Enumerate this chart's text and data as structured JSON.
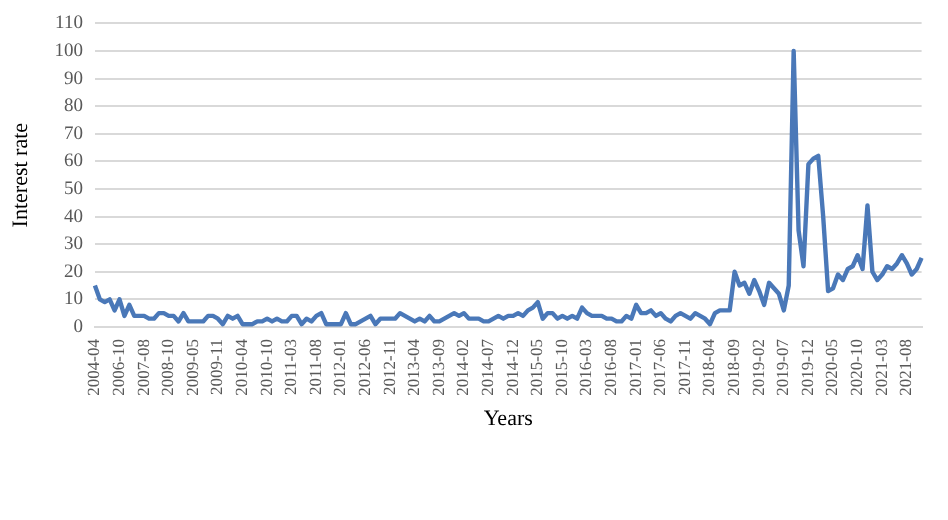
{
  "chart_data": {
    "type": "line",
    "xlabel": "Years",
    "ylabel": "Interest rate",
    "categories": [
      "2004-04",
      null,
      null,
      null,
      null,
      "2006-10",
      null,
      null,
      null,
      null,
      "2007-08",
      null,
      null,
      null,
      null,
      "2008-10",
      null,
      null,
      null,
      null,
      "2009-05",
      null,
      null,
      null,
      null,
      "2009-11",
      null,
      null,
      null,
      null,
      "2010-04",
      null,
      null,
      null,
      null,
      "2010-10",
      null,
      null,
      null,
      null,
      "2011-03",
      null,
      null,
      null,
      null,
      "2011-08",
      null,
      null,
      null,
      null,
      "2012-01",
      null,
      null,
      null,
      null,
      "2012-06",
      null,
      null,
      null,
      null,
      "2012-11",
      null,
      null,
      null,
      null,
      "2013-04",
      null,
      null,
      null,
      null,
      "2013-09",
      null,
      null,
      null,
      null,
      "2014-02",
      null,
      null,
      null,
      null,
      "2014-07",
      null,
      null,
      null,
      null,
      "2014-12",
      null,
      null,
      null,
      null,
      "2015-05",
      null,
      null,
      null,
      null,
      "2015-10",
      null,
      null,
      null,
      null,
      "2016-03",
      null,
      null,
      null,
      null,
      "2016-08",
      null,
      null,
      null,
      null,
      "2017-01",
      null,
      null,
      null,
      null,
      "2017-06",
      null,
      null,
      null,
      null,
      "2017-11",
      null,
      null,
      null,
      null,
      "2018-04",
      null,
      null,
      null,
      null,
      "2018-09",
      null,
      null,
      null,
      null,
      "2019-02",
      null,
      null,
      null,
      null,
      "2019-07",
      null,
      null,
      null,
      null,
      "2019-12",
      null,
      null,
      null,
      null,
      "2020-05",
      null,
      null,
      null,
      null,
      "2020-10",
      null,
      null,
      null,
      null,
      "2021-03",
      null,
      null,
      null,
      null,
      "2021-08",
      null,
      null,
      null
    ],
    "series": [
      {
        "color": "#4a78b8",
        "values": [
          15,
          10,
          9,
          10,
          6,
          10,
          4,
          8,
          4,
          4,
          4,
          3,
          3,
          5,
          5,
          4,
          4,
          2,
          5,
          2,
          2,
          2,
          2,
          4,
          4,
          3,
          1,
          4,
          3,
          4,
          1,
          1,
          1,
          2,
          2,
          3,
          2,
          3,
          2,
          2,
          4,
          4,
          1,
          3,
          2,
          4,
          5,
          1,
          1,
          1,
          1,
          5,
          1,
          1,
          2,
          3,
          4,
          1,
          3,
          3,
          3,
          3,
          5,
          4,
          3,
          2,
          3,
          2,
          4,
          2,
          2,
          3,
          4,
          5,
          4,
          5,
          3,
          3,
          3,
          2,
          2,
          3,
          4,
          3,
          4,
          4,
          5,
          4,
          6,
          7,
          9,
          3,
          5,
          5,
          3,
          4,
          3,
          4,
          3,
          7,
          5,
          4,
          4,
          4,
          3,
          3,
          2,
          2,
          4,
          3,
          8,
          5,
          5,
          6,
          4,
          5,
          3,
          2,
          4,
          5,
          4,
          3,
          5,
          4,
          3,
          1,
          5,
          6,
          6,
          6,
          20,
          15,
          16,
          12,
          17,
          13,
          8,
          16,
          14,
          12,
          6,
          15,
          100,
          35,
          22,
          59,
          61,
          62,
          40,
          13,
          14,
          19,
          17,
          21,
          22,
          26,
          21,
          44,
          20,
          17,
          19,
          22,
          21,
          23,
          26,
          23,
          19,
          21,
          25
        ]
      }
    ],
    "ylim": [
      0,
      110
    ],
    "yticks": [
      0,
      10,
      20,
      30,
      40,
      50,
      60,
      70,
      80,
      90,
      100,
      110
    ],
    "grid": "y",
    "legend": false
  }
}
